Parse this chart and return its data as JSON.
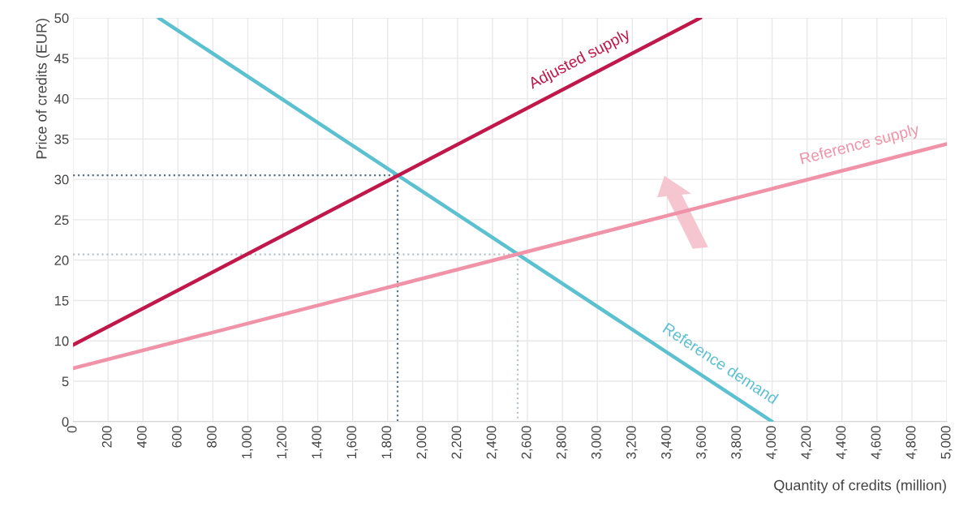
{
  "chart_data": {
    "type": "line",
    "xlabel": "Quantity of credits (million)",
    "ylabel": "Price of credits (EUR)",
    "xlim": [
      0,
      5000
    ],
    "ylim": [
      0,
      50
    ],
    "xticks": [
      0,
      200,
      400,
      600,
      800,
      {
        "value": 1000,
        "label": "1,000"
      },
      {
        "value": 1200,
        "label": "1,200"
      },
      {
        "value": 1400,
        "label": "1,400"
      },
      {
        "value": 1600,
        "label": "1,600"
      },
      {
        "value": 1800,
        "label": "1,800"
      },
      {
        "value": 2000,
        "label": "2,000"
      },
      {
        "value": 2200,
        "label": "2,200"
      },
      {
        "value": 2400,
        "label": "2,400"
      },
      {
        "value": 2600,
        "label": "2,600"
      },
      {
        "value": 2800,
        "label": "2,800"
      },
      {
        "value": 3000,
        "label": "3,000"
      },
      {
        "value": 3200,
        "label": "3,200"
      },
      {
        "value": 3400,
        "label": "3,400"
      },
      {
        "value": 3600,
        "label": "3,600"
      },
      {
        "value": 3800,
        "label": "3,800"
      },
      {
        "value": 4000,
        "label": "4,000"
      },
      {
        "value": 4200,
        "label": "4,200"
      },
      {
        "value": 4400,
        "label": "4,400"
      },
      {
        "value": 4600,
        "label": "4,600"
      },
      {
        "value": 4800,
        "label": "4,800"
      },
      {
        "value": 5000,
        "label": "5,000"
      }
    ],
    "yticks": [
      0,
      5,
      10,
      15,
      20,
      25,
      30,
      35,
      40,
      45,
      50
    ],
    "grid": true,
    "legend": false,
    "series": [
      {
        "name": "Reference demand",
        "color": "#5bc0d0",
        "x": [
          490,
          4000
        ],
        "values": [
          50,
          0
        ]
      },
      {
        "name": "Adjusted supply",
        "color": "#c0184a",
        "x": [
          0,
          3590
        ],
        "values": [
          9.5,
          50
        ]
      },
      {
        "name": "Reference supply",
        "color": "#f093a8",
        "x": [
          0,
          5000
        ],
        "values": [
          6.6,
          34.4
        ]
      },
      {
        "color": "#5a7585",
        "x": [
          0,
          1857,
          1857
        ],
        "values": [
          30.5,
          30.5,
          0
        ],
        "line_style": "dotted"
      },
      {
        "color": "#b8c4c8",
        "x": [
          0,
          2544,
          2544
        ],
        "values": [
          20.7,
          20.7,
          0
        ],
        "line_style": "dotted"
      }
    ]
  }
}
